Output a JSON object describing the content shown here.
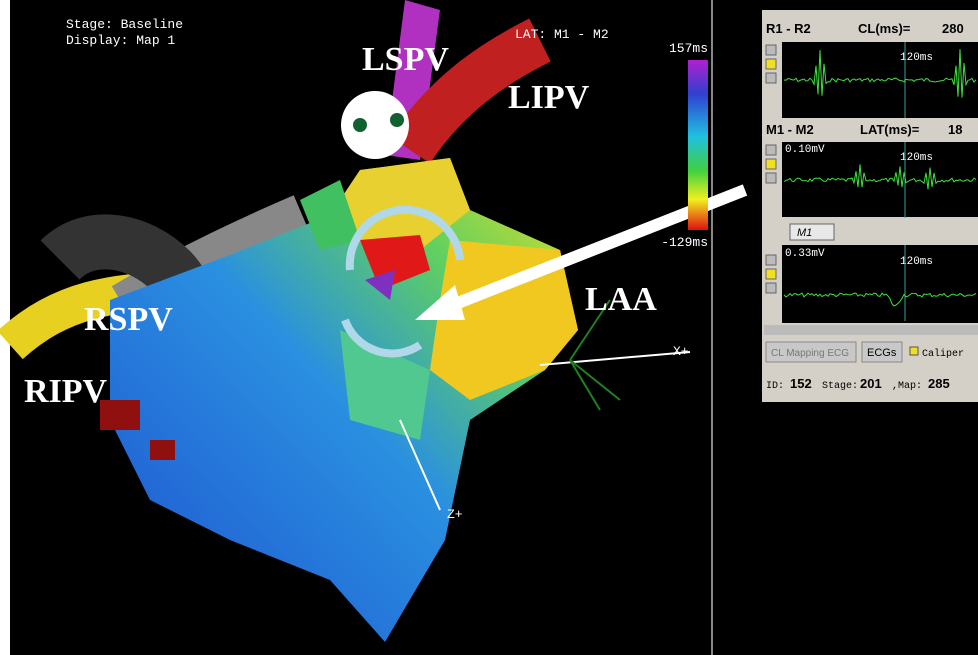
{
  "map": {
    "stage": "Stage: Baseline",
    "display": "Display: Map 1",
    "lat_source": "LAT: M1 - M2",
    "scale": {
      "max": "157ms",
      "min": "-129ms"
    },
    "labels": {
      "lspv": "LSPV",
      "lipv": "LIPV",
      "rspv": "RSPV",
      "ripv": "RIPV",
      "laa": "LAA"
    },
    "axes": {
      "x": "X+",
      "z": "Z+"
    }
  },
  "panel": {
    "channel1": {
      "name": "R1 - R2",
      "metric": "CL(ms)=",
      "value": 280,
      "time": "120ms"
    },
    "channel2": {
      "name": "M1 - M2",
      "metric": "LAT(ms)=",
      "value": 18,
      "amplitude": "0.10mV",
      "time": "120ms"
    },
    "channel3": {
      "selector": "M1",
      "amplitude": "0.33mV",
      "time": "120ms"
    },
    "buttons": {
      "mapping": "CL Mapping ECG",
      "ecgs": "ECGs",
      "caliper": "Caliper"
    },
    "status": {
      "id_label": "ID:",
      "id": 152,
      "stage_label": "Stage:",
      "stage": 201,
      "map_label": ",Map:",
      "map": 285
    }
  }
}
